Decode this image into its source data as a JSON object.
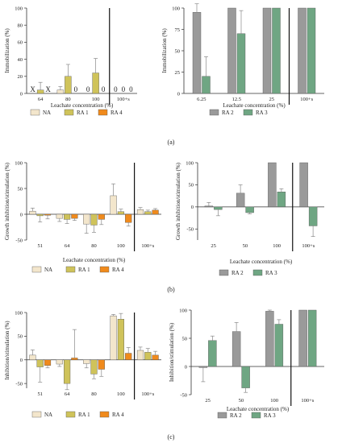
{
  "figure": {
    "panel_labels": [
      "(a)",
      "(b)",
      "(c)"
    ]
  },
  "colors": {
    "NA": "#f3e6cc",
    "RA 1": "#cfc35a",
    "RA 4": "#f08a1c",
    "RA 2": "#9a9a9a",
    "RA 3": "#6fa683",
    "axis": "#333333",
    "error": "#8a8a8a"
  },
  "chart_data": [
    {
      "id": "a-left",
      "type": "bar",
      "xlabel": "Leachate concentration (%)",
      "ylabel": "Immobilization (%)",
      "categories": [
        "64",
        "80",
        "100",
        "100+s"
      ],
      "ylim": [
        0,
        100
      ],
      "yticks": [
        0,
        20,
        40,
        60,
        80,
        100
      ],
      "separator_before": 3,
      "series": [
        {
          "name": "NA",
          "values": [
            0,
            4,
            0,
            0
          ],
          "errors": [
            0,
            4,
            0,
            0
          ]
        },
        {
          "name": "RA 1",
          "values": [
            4,
            20,
            24,
            0
          ],
          "errors": [
            9,
            14,
            17,
            0
          ]
        },
        {
          "name": "RA 4",
          "values": [
            0,
            0,
            0,
            0
          ],
          "errors": [
            0,
            0,
            0,
            0
          ]
        }
      ],
      "annotations": [
        {
          "category": 0,
          "series": 0,
          "text": "X"
        },
        {
          "category": 0,
          "series": 2,
          "text": "X"
        },
        {
          "category": 1,
          "series": 2,
          "text": "0"
        },
        {
          "category": 2,
          "series": 0,
          "text": "0"
        },
        {
          "category": 2,
          "series": 2,
          "text": "0"
        },
        {
          "category": 3,
          "series": 0,
          "text": "0"
        },
        {
          "category": 3,
          "series": 1,
          "text": "0"
        },
        {
          "category": 3,
          "series": 2,
          "text": "0"
        }
      ],
      "legend": [
        "NA",
        "RA 1",
        "RA 4"
      ]
    },
    {
      "id": "a-right",
      "type": "bar",
      "xlabel": "Leachate concentration (%)",
      "ylabel": "Immobilization (%)",
      "categories": [
        "6.25",
        "12.5",
        "25",
        "100+s"
      ],
      "ylim": [
        0,
        100
      ],
      "yticks": [
        0,
        25,
        50,
        75,
        100
      ],
      "separator_before": 3,
      "series": [
        {
          "name": "RA 2",
          "values": [
            95,
            100,
            100,
            100
          ],
          "errors": [
            10,
            0,
            0,
            0
          ]
        },
        {
          "name": "RA 3",
          "values": [
            20,
            70,
            100,
            100
          ],
          "errors": [
            23,
            27,
            0,
            0
          ]
        }
      ],
      "legend": [
        "RA 2",
        "RA 3"
      ]
    },
    {
      "id": "b-left",
      "type": "bar",
      "xlabel": "Leachate concentration (%)",
      "ylabel": "Growth inhibition/stimulation (%)",
      "categories": [
        "51",
        "64",
        "80",
        "100",
        "100+s"
      ],
      "ylim": [
        -50,
        100
      ],
      "yticks": [
        -50,
        0,
        50,
        100
      ],
      "separator_before": 4,
      "series": [
        {
          "name": "NA",
          "values": [
            6,
            -8,
            -19,
            36,
            9
          ],
          "errors": [
            6,
            6,
            18,
            23,
            4
          ]
        },
        {
          "name": "RA 1",
          "values": [
            -3,
            -10,
            -21,
            5,
            5
          ],
          "errors": [
            12,
            8,
            14,
            5,
            3
          ]
        },
        {
          "name": "RA 4",
          "values": [
            -2,
            -8,
            -10,
            -16,
            8
          ],
          "errors": [
            7,
            4,
            10,
            7,
            3
          ]
        }
      ],
      "legend": [
        "NA",
        "RA 1",
        "RA 4"
      ]
    },
    {
      "id": "b-right",
      "type": "bar",
      "xlabel": "Leachate concentration (%)",
      "ylabel": "Growth inhibition/stimulation (%)",
      "categories": [
        "25",
        "50",
        "100",
        "100+s"
      ],
      "ylim": [
        -75,
        100
      ],
      "yticks": [
        -50,
        0,
        50,
        100
      ],
      "separator_before": 3,
      "series": [
        {
          "name": "RA 2",
          "values": [
            2,
            31,
            100,
            100
          ],
          "errors": [
            8,
            19,
            0,
            0
          ]
        },
        {
          "name": "RA 3",
          "values": [
            -6,
            -13,
            34,
            -43
          ],
          "errors": [
            14,
            3,
            7,
            24
          ]
        }
      ],
      "legend": [
        "RA 2",
        "RA 3"
      ]
    },
    {
      "id": "c-left",
      "type": "bar",
      "xlabel": "",
      "ylabel": "Inhibition/stimulation (%)",
      "categories": [
        "51",
        "64",
        "80",
        "100",
        "100+s"
      ],
      "ylim": [
        -60,
        100
      ],
      "yticks": [
        -50,
        0,
        50,
        100
      ],
      "separator_before": 4,
      "series": [
        {
          "name": "NA",
          "values": [
            10,
            -9,
            -8,
            93,
            20
          ],
          "errors": [
            11,
            5,
            9,
            3,
            7
          ]
        },
        {
          "name": "RA 1",
          "values": [
            -15,
            -50,
            -30,
            86,
            16
          ],
          "errors": [
            32,
            13,
            10,
            12,
            8
          ]
        },
        {
          "name": "RA 4",
          "values": [
            -12,
            4,
            -20,
            14,
            10
          ],
          "errors": [
            5,
            60,
            15,
            12,
            8
          ]
        }
      ],
      "legend": [
        "NA",
        "RA 1",
        "RA 4"
      ]
    },
    {
      "id": "c-right",
      "type": "bar",
      "xlabel": "Leachate concentration (%)",
      "ylabel": "Inhibition/stimulation (%)",
      "categories": [
        "25",
        "50",
        "100",
        "100+s"
      ],
      "ylim": [
        -50,
        100
      ],
      "yticks": [
        -50,
        0,
        50,
        100
      ],
      "separator_before": 3,
      "series": [
        {
          "name": "RA 2",
          "values": [
            -2,
            62,
            98,
            100
          ],
          "errors": [
            25,
            16,
            2,
            0
          ]
        },
        {
          "name": "RA 3",
          "values": [
            46,
            -38,
            75,
            100
          ],
          "errors": [
            8,
            8,
            8,
            0
          ]
        }
      ],
      "legend": [
        "RA 2",
        "RA 3"
      ]
    }
  ]
}
